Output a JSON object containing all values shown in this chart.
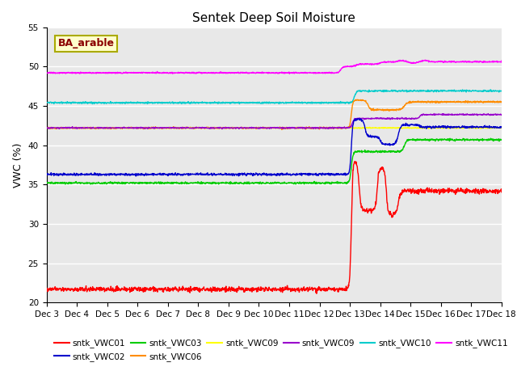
{
  "title": "Sentek Deep Soil Moisture",
  "ylabel": "VWC (%)",
  "annotation": "BA_arable",
  "ylim": [
    20,
    55
  ],
  "yticks": [
    20,
    25,
    30,
    35,
    40,
    45,
    50,
    55
  ],
  "x_labels": [
    "Dec 3",
    "Dec 4",
    "Dec 5",
    "Dec 6",
    "Dec 7",
    "Dec 8",
    "Dec 9",
    "Dec 10",
    "Dec 11",
    "Dec 12",
    "Dec 13",
    "Dec 14",
    "Dec 15",
    "Dec 16",
    "Dec 17",
    "Dec 18"
  ],
  "plot_bg_color": "#e8e8e8",
  "series": {
    "sntk_VWC01": {
      "color": "#ff0000",
      "label": "sntk_VWC01"
    },
    "sntk_VWC02": {
      "color": "#0000cc",
      "label": "sntk_VWC02"
    },
    "sntk_VWC03": {
      "color": "#00cc00",
      "label": "sntk_VWC03"
    },
    "sntk_VWC06": {
      "color": "#ff8c00",
      "label": "sntk_VWC06"
    },
    "sntk_VWC09y": {
      "color": "#ffff00",
      "label": "sntk_VWC09"
    },
    "sntk_VWC09p": {
      "color": "#9900cc",
      "label": "sntk_VWC09"
    },
    "sntk_VWC10": {
      "color": "#00cccc",
      "label": "sntk_VWC10"
    },
    "sntk_VWC11": {
      "color": "#ff00ff",
      "label": "sntk_VWC11"
    }
  }
}
